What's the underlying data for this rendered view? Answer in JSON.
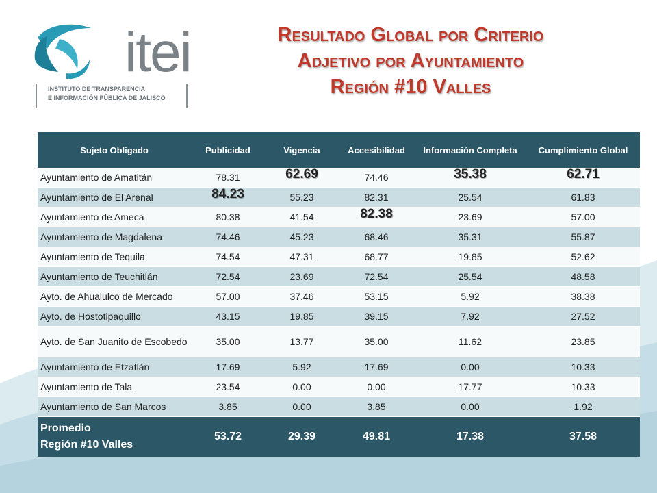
{
  "logo": {
    "name": "itei",
    "subtitle_line1": "INSTITUTO DE TRANSPARENCIA",
    "subtitle_line2": "E INFORMACIÓN PÚBLICA DE JALISCO",
    "colors": {
      "primary": "#2a9bb6",
      "grey": "#7a8288"
    }
  },
  "title": {
    "line1": "Resultado Global por Criterio",
    "line2": "Adjetivo por Ayuntamiento",
    "line3": "Región #10 Valles",
    "color": "#c0392b"
  },
  "table": {
    "headers": [
      "Sujeto Obligado",
      "Publicidad",
      "Vigencia",
      "Accesibilidad",
      "Información Completa",
      "Cumplimiento Global"
    ],
    "header_color": "#2b5766",
    "rows": [
      {
        "name": "Ayuntamiento de Amatitán",
        "values": [
          "78.31",
          "62.69",
          "74.46",
          "35.38",
          "62.71"
        ]
      },
      {
        "name": "Ayuntamiento de El Arenal",
        "values": [
          "84.23",
          "55.23",
          "82.31",
          "25.54",
          "61.83"
        ]
      },
      {
        "name": "Ayuntamiento de Ameca",
        "values": [
          "80.38",
          "41.54",
          "82.38",
          "23.69",
          "57.00"
        ]
      },
      {
        "name": "Ayuntamiento de Magdalena",
        "values": [
          "74.46",
          "45.23",
          "68.46",
          "35.31",
          "55.87"
        ]
      },
      {
        "name": "Ayuntamiento de Tequila",
        "values": [
          "74.54",
          "47.31",
          "68.77",
          "19.85",
          "52.62"
        ]
      },
      {
        "name": "Ayuntamiento de Teuchitlán",
        "values": [
          "72.54",
          "23.69",
          "72.54",
          "25.54",
          "48.58"
        ]
      },
      {
        "name": "Ayto. de Ahualulco de Mercado",
        "values": [
          "57.00",
          "37.46",
          "53.15",
          "5.92",
          "38.38"
        ]
      },
      {
        "name": "Ayto. de Hostotipaquillo",
        "values": [
          "43.15",
          "19.85",
          "39.15",
          "7.92",
          "27.52"
        ]
      },
      {
        "name": "Ayto. de San Juanito de Escobedo",
        "values": [
          "35.00",
          "13.77",
          "35.00",
          "11.62",
          "23.85"
        ]
      },
      {
        "name": "Ayuntamiento de Etzatlán",
        "values": [
          "17.69",
          "5.92",
          "17.69",
          "0.00",
          "10.33"
        ]
      },
      {
        "name": "Ayuntamiento de Tala",
        "values": [
          "23.54",
          "0.00",
          "0.00",
          "17.77",
          "10.33"
        ]
      },
      {
        "name": "Ayuntamiento de San Marcos",
        "values": [
          "3.85",
          "0.00",
          "3.85",
          "0.00",
          "1.92"
        ]
      }
    ],
    "highlighted": [
      {
        "row": 0,
        "col": 1
      },
      {
        "row": 0,
        "col": 3
      },
      {
        "row": 0,
        "col": 4
      },
      {
        "row": 1,
        "col": 0
      },
      {
        "row": 2,
        "col": 2
      }
    ],
    "footer": {
      "label_line1": "Promedio",
      "label_line2": "Región #10 Valles",
      "values": [
        "53.72",
        "29.39",
        "49.81",
        "17.38",
        "37.58"
      ]
    }
  }
}
